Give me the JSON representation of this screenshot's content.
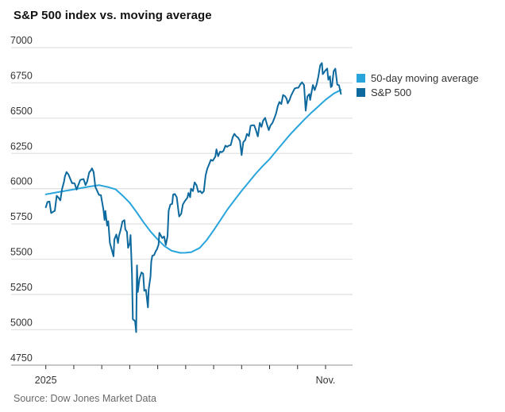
{
  "title": "S&P 500 index vs. moving average",
  "source": "Source: Dow Jones Market Data",
  "legend": [
    {
      "label": "50-day moving average",
      "color": "#29a5dc"
    },
    {
      "label": "S&P 500",
      "color": "#0e6a9e"
    }
  ],
  "colors": {
    "ma_line": "#29a5dc",
    "sp500_line": "#0e6a9e",
    "gridline": "#e2e2e2",
    "axis_line": "#9a9a9a",
    "tick_mark": "#2b2b2b",
    "tick_label": "#333333",
    "title_text": "#121212",
    "source_text": "#696969"
  },
  "chart_data": {
    "type": "line",
    "title": "S&P 500 index vs. moving average",
    "xlabel": "",
    "ylabel": "",
    "x_unit": "months since Jan 1, 2025 (0 = Jan, 10 = Nov)",
    "x_range": [
      0,
      10.6
    ],
    "y_range": [
      4750,
      7000
    ],
    "y_ticks": [
      7000,
      6750,
      6500,
      6250,
      6000,
      5750,
      5500,
      5250,
      5000,
      4750
    ],
    "x_ticks": [
      {
        "m": 0,
        "label": "2025"
      },
      {
        "m": 1,
        "label": ""
      },
      {
        "m": 2,
        "label": ""
      },
      {
        "m": 3,
        "label": ""
      },
      {
        "m": 4,
        "label": ""
      },
      {
        "m": 5,
        "label": ""
      },
      {
        "m": 6,
        "label": ""
      },
      {
        "m": 7,
        "label": ""
      },
      {
        "m": 8,
        "label": ""
      },
      {
        "m": 9,
        "label": ""
      },
      {
        "m": 10,
        "label": "Nov."
      }
    ],
    "grid": "horizontal",
    "legend_position": "right",
    "series": [
      {
        "name": "50-day moving average",
        "color": "#29a5dc",
        "points": [
          [
            0.0,
            5960
          ],
          [
            0.5,
            5978
          ],
          [
            1.0,
            5995
          ],
          [
            1.5,
            6013
          ],
          [
            1.9,
            6025
          ],
          [
            2.25,
            6010
          ],
          [
            2.5,
            5995
          ],
          [
            2.75,
            5950
          ],
          [
            3.0,
            5900
          ],
          [
            3.25,
            5832
          ],
          [
            3.5,
            5760
          ],
          [
            3.75,
            5695
          ],
          [
            4.0,
            5640
          ],
          [
            4.25,
            5592
          ],
          [
            4.5,
            5560
          ],
          [
            4.8,
            5545
          ],
          [
            5.0,
            5546
          ],
          [
            5.2,
            5550
          ],
          [
            5.5,
            5580
          ],
          [
            5.75,
            5635
          ],
          [
            6.0,
            5705
          ],
          [
            6.25,
            5780
          ],
          [
            6.5,
            5855
          ],
          [
            6.75,
            5920
          ],
          [
            7.0,
            5985
          ],
          [
            7.25,
            6045
          ],
          [
            7.5,
            6105
          ],
          [
            7.75,
            6160
          ],
          [
            8.0,
            6210
          ],
          [
            8.25,
            6270
          ],
          [
            8.5,
            6330
          ],
          [
            8.75,
            6388
          ],
          [
            9.0,
            6440
          ],
          [
            9.25,
            6492
          ],
          [
            9.5,
            6540
          ],
          [
            9.75,
            6585
          ],
          [
            10.0,
            6630
          ],
          [
            10.3,
            6675
          ],
          [
            10.55,
            6700
          ]
        ]
      },
      {
        "name": "S&P 500",
        "color": "#0e6a9e",
        "points": [
          [
            0.0,
            5868
          ],
          [
            0.06,
            5906
          ],
          [
            0.13,
            5909
          ],
          [
            0.19,
            5827
          ],
          [
            0.26,
            5836
          ],
          [
            0.32,
            5843
          ],
          [
            0.39,
            5950
          ],
          [
            0.45,
            5937
          ],
          [
            0.52,
            5917
          ],
          [
            0.58,
            5996
          ],
          [
            0.65,
            6049
          ],
          [
            0.68,
            6086
          ],
          [
            0.74,
            6118
          ],
          [
            0.81,
            6101
          ],
          [
            0.87,
            6071
          ],
          [
            0.94,
            6039
          ],
          [
            1.0,
            6040
          ],
          [
            1.03,
            6037
          ],
          [
            1.1,
            5994
          ],
          [
            1.16,
            6026
          ],
          [
            1.23,
            6061
          ],
          [
            1.29,
            6066
          ],
          [
            1.35,
            6068
          ],
          [
            1.42,
            6025
          ],
          [
            1.48,
            6051
          ],
          [
            1.55,
            6115
          ],
          [
            1.61,
            6129
          ],
          [
            1.65,
            6144
          ],
          [
            1.71,
            6118
          ],
          [
            1.77,
            6013
          ],
          [
            1.84,
            5983
          ],
          [
            1.9,
            5956
          ],
          [
            1.97,
            5954
          ],
          [
            2.06,
            5850
          ],
          [
            2.1,
            5778
          ],
          [
            2.13,
            5842
          ],
          [
            2.19,
            5739
          ],
          [
            2.23,
            5770
          ],
          [
            2.29,
            5615
          ],
          [
            2.35,
            5572
          ],
          [
            2.42,
            5521
          ],
          [
            2.45,
            5639
          ],
          [
            2.52,
            5675
          ],
          [
            2.58,
            5615
          ],
          [
            2.61,
            5663
          ],
          [
            2.68,
            5712
          ],
          [
            2.74,
            5767
          ],
          [
            2.81,
            5777
          ],
          [
            2.84,
            5712
          ],
          [
            2.9,
            5694
          ],
          [
            2.94,
            5581
          ],
          [
            3.0,
            5612
          ],
          [
            3.03,
            5671
          ],
          [
            3.08,
            5396
          ],
          [
            3.11,
            5074
          ],
          [
            3.19,
            5062
          ],
          [
            3.23,
            4983
          ],
          [
            3.26,
            5457
          ],
          [
            3.29,
            5268
          ],
          [
            3.35,
            5363
          ],
          [
            3.42,
            5406
          ],
          [
            3.48,
            5397
          ],
          [
            3.52,
            5276
          ],
          [
            3.58,
            5283
          ],
          [
            3.65,
            5158
          ],
          [
            3.68,
            5288
          ],
          [
            3.74,
            5376
          ],
          [
            3.77,
            5484
          ],
          [
            3.81,
            5525
          ],
          [
            3.87,
            5529
          ],
          [
            3.94,
            5561
          ],
          [
            3.97,
            5569
          ],
          [
            4.03,
            5604
          ],
          [
            4.06,
            5687
          ],
          [
            4.16,
            5650
          ],
          [
            4.23,
            5661
          ],
          [
            4.29,
            5601
          ],
          [
            4.35,
            5663
          ],
          [
            4.39,
            5844
          ],
          [
            4.45,
            5887
          ],
          [
            4.52,
            5893
          ],
          [
            4.55,
            5958
          ],
          [
            4.61,
            5963
          ],
          [
            4.68,
            5940
          ],
          [
            4.74,
            5843
          ],
          [
            4.77,
            5803
          ],
          [
            4.84,
            5822
          ],
          [
            4.9,
            5888
          ],
          [
            4.97,
            5912
          ],
          [
            5.06,
            5936
          ],
          [
            5.1,
            5970
          ],
          [
            5.16,
            5939
          ],
          [
            5.19,
            6000
          ],
          [
            5.26,
            5983
          ],
          [
            5.32,
            6045
          ],
          [
            5.39,
            6023
          ],
          [
            5.45,
            5977
          ],
          [
            5.52,
            5983
          ],
          [
            5.58,
            5968
          ],
          [
            5.65,
            5982
          ],
          [
            5.71,
            6092
          ],
          [
            5.77,
            6141
          ],
          [
            5.84,
            6173
          ],
          [
            5.9,
            6205
          ],
          [
            5.97,
            6198
          ],
          [
            6.06,
            6228
          ],
          [
            6.1,
            6279
          ],
          [
            6.16,
            6230
          ],
          [
            6.23,
            6263
          ],
          [
            6.29,
            6259
          ],
          [
            6.35,
            6268
          ],
          [
            6.42,
            6305
          ],
          [
            6.48,
            6297
          ],
          [
            6.55,
            6306
          ],
          [
            6.61,
            6309
          ],
          [
            6.68,
            6364
          ],
          [
            6.74,
            6389
          ],
          [
            6.81,
            6371
          ],
          [
            6.87,
            6363
          ],
          [
            6.94,
            6339
          ],
          [
            7.0,
            6238
          ],
          [
            7.06,
            6330
          ],
          [
            7.13,
            6346
          ],
          [
            7.19,
            6389
          ],
          [
            7.26,
            6373
          ],
          [
            7.32,
            6446
          ],
          [
            7.39,
            6450
          ],
          [
            7.45,
            6449
          ],
          [
            7.52,
            6411
          ],
          [
            7.58,
            6370
          ],
          [
            7.65,
            6467
          ],
          [
            7.71,
            6439
          ],
          [
            7.77,
            6482
          ],
          [
            7.84,
            6502
          ],
          [
            7.9,
            6460
          ],
          [
            7.97,
            6415
          ],
          [
            8.03,
            6448
          ],
          [
            8.1,
            6466
          ],
          [
            8.16,
            6495
          ],
          [
            8.23,
            6532
          ],
          [
            8.29,
            6584
          ],
          [
            8.35,
            6615
          ],
          [
            8.42,
            6600
          ],
          [
            8.48,
            6664
          ],
          [
            8.55,
            6656
          ],
          [
            8.61,
            6637
          ],
          [
            8.65,
            6605
          ],
          [
            8.71,
            6628
          ],
          [
            8.77,
            6661
          ],
          [
            8.84,
            6688
          ],
          [
            8.9,
            6711
          ],
          [
            8.97,
            6715
          ],
          [
            9.03,
            6716
          ],
          [
            9.1,
            6740
          ],
          [
            9.16,
            6754
          ],
          [
            9.23,
            6735
          ],
          [
            9.29,
            6553
          ],
          [
            9.35,
            6654
          ],
          [
            9.42,
            6671
          ],
          [
            9.45,
            6629
          ],
          [
            9.48,
            6664
          ],
          [
            9.55,
            6735
          ],
          [
            9.61,
            6699
          ],
          [
            9.68,
            6738
          ],
          [
            9.74,
            6791
          ],
          [
            9.81,
            6875
          ],
          [
            9.87,
            6891
          ],
          [
            9.9,
            6812
          ],
          [
            9.94,
            6822
          ],
          [
            10.0,
            6840
          ],
          [
            10.06,
            6852
          ],
          [
            10.1,
            6772
          ],
          [
            10.16,
            6796
          ],
          [
            10.19,
            6720
          ],
          [
            10.23,
            6729
          ],
          [
            10.29,
            6833
          ],
          [
            10.35,
            6851
          ],
          [
            10.42,
            6737
          ],
          [
            10.48,
            6734
          ],
          [
            10.55,
            6672
          ]
        ]
      }
    ]
  }
}
